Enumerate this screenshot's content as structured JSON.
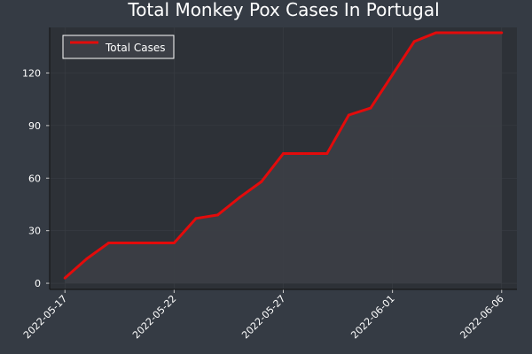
{
  "chart_data": {
    "type": "area",
    "title": "Total Monkey Pox Cases In Portugal",
    "xlabel": "",
    "ylabel": "",
    "x": [
      "2022-05-17",
      "2022-05-18",
      "2022-05-19",
      "2022-05-20",
      "2022-05-21",
      "2022-05-22",
      "2022-05-23",
      "2022-05-24",
      "2022-05-25",
      "2022-05-26",
      "2022-05-27",
      "2022-05-28",
      "2022-05-29",
      "2022-05-30",
      "2022-05-31",
      "2022-06-01",
      "2022-06-02",
      "2022-06-03",
      "2022-06-04",
      "2022-06-05",
      "2022-06-06"
    ],
    "series": [
      {
        "name": "Total Cases",
        "color": "#e30b0b",
        "values": [
          3,
          14,
          23,
          23,
          23,
          23,
          37,
          39,
          49,
          58,
          74,
          74,
          74,
          96,
          100,
          119,
          138,
          143,
          143,
          143,
          143
        ]
      }
    ],
    "ylim": [
      -3.5,
      146
    ],
    "y_ticks": [
      0,
      30,
      60,
      90,
      120
    ],
    "x_ticks": [
      "2022-05-17",
      "2022-05-22",
      "2022-05-27",
      "2022-06-01",
      "2022-06-06"
    ],
    "grid": true,
    "legend": "top-left"
  },
  "colors": {
    "background": "#353b44",
    "plot_area": "#2d3137",
    "fill": "#3c3f46",
    "line": "#e30b0b"
  }
}
